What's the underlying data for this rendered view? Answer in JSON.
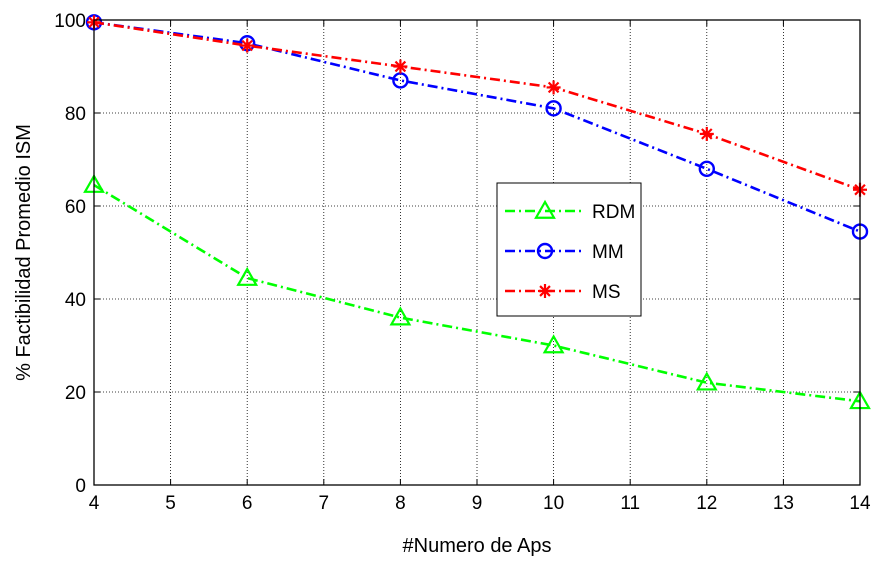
{
  "chart_data": {
    "type": "line",
    "xlabel": "#Numero de Aps",
    "ylabel": "% Factibilidad Promedio ISM",
    "xlim": [
      4,
      14
    ],
    "ylim": [
      0,
      100
    ],
    "x_ticks": [
      "4",
      "5",
      "6",
      "7",
      "8",
      "9",
      "10",
      "11",
      "12",
      "13",
      "14"
    ],
    "y_ticks": [
      "0",
      "20",
      "40",
      "60",
      "80",
      "100"
    ],
    "grid": true,
    "legend_position": "center-right",
    "x": [
      4,
      6,
      8,
      10,
      12,
      14
    ],
    "series": [
      {
        "name": "RDM",
        "color": "#00ff00",
        "marker": "triangle",
        "values": [
          64.5,
          44.5,
          36,
          30,
          22,
          18
        ]
      },
      {
        "name": "MM",
        "color": "#0000ff",
        "marker": "circle",
        "values": [
          99.5,
          95,
          87,
          81,
          68,
          54.5
        ]
      },
      {
        "name": "MS",
        "color": "#ff0000",
        "marker": "star",
        "values": [
          99.5,
          94.5,
          90,
          85.5,
          75.5,
          63.5
        ]
      }
    ]
  }
}
